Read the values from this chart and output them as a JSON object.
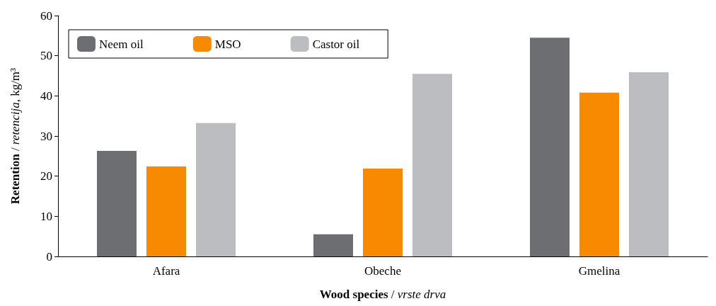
{
  "chart_data": {
    "type": "bar",
    "xlabel": "Wood species / vrste drva",
    "ylabel": "Retention / retencija, kg/m³",
    "categories": [
      "Afara",
      "Obeche",
      "Gmelina"
    ],
    "series": [
      {
        "name": "Neem oil",
        "color": "#6d6e71",
        "values": [
          26.3,
          5.5,
          54.5
        ]
      },
      {
        "name": "MSO",
        "color": "#f78a00",
        "values": [
          22.4,
          21.9,
          40.8
        ]
      },
      {
        "name": "Castor oil",
        "color": "#bcbdc0",
        "values": [
          33.2,
          45.5,
          45.9
        ]
      }
    ],
    "ylim": [
      0,
      60
    ],
    "yticks": [
      0,
      10,
      20,
      30,
      40,
      50,
      60
    ],
    "grid": false,
    "legend": "top left"
  }
}
